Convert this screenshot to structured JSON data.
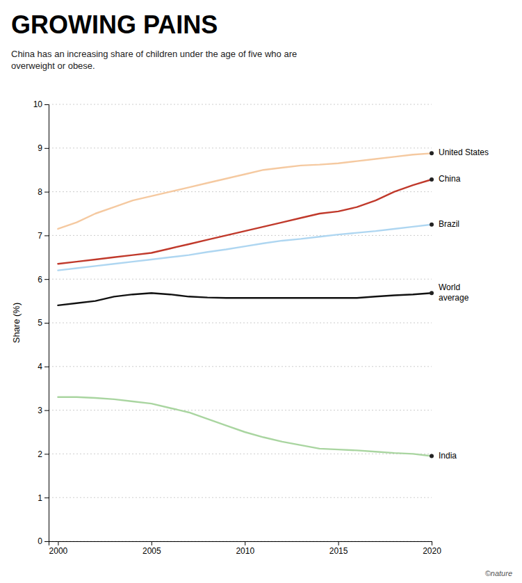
{
  "chart_data": {
    "type": "line",
    "title": "GROWING PAINS",
    "subtitle": "China has an increasing share of children under the age of five who are\noverweight or obese.",
    "ylabel": "Share (%)",
    "x": [
      2000,
      2001,
      2002,
      2003,
      2004,
      2005,
      2006,
      2007,
      2008,
      2009,
      2010,
      2011,
      2012,
      2013,
      2014,
      2015,
      2016,
      2017,
      2018,
      2019,
      2020
    ],
    "series": [
      {
        "name": "United States",
        "color": "#F5C9A0",
        "values": [
          7.15,
          7.3,
          7.5,
          7.65,
          7.8,
          7.9,
          8.0,
          8.1,
          8.2,
          8.3,
          8.4,
          8.5,
          8.55,
          8.6,
          8.62,
          8.65,
          8.7,
          8.75,
          8.8,
          8.85,
          8.88
        ]
      },
      {
        "name": "China",
        "color": "#C0392B",
        "values": [
          6.35,
          6.4,
          6.45,
          6.5,
          6.55,
          6.6,
          6.7,
          6.8,
          6.9,
          7.0,
          7.1,
          7.2,
          7.3,
          7.4,
          7.5,
          7.55,
          7.65,
          7.8,
          8.0,
          8.15,
          8.28
        ]
      },
      {
        "name": "Brazil",
        "color": "#AED6F1",
        "values": [
          6.2,
          6.25,
          6.3,
          6.35,
          6.4,
          6.45,
          6.5,
          6.55,
          6.62,
          6.68,
          6.75,
          6.82,
          6.88,
          6.92,
          6.97,
          7.02,
          7.06,
          7.1,
          7.15,
          7.2,
          7.25
        ]
      },
      {
        "name": "World\naverage",
        "color": "#111111",
        "values": [
          5.4,
          5.45,
          5.5,
          5.6,
          5.65,
          5.68,
          5.65,
          5.6,
          5.58,
          5.57,
          5.57,
          5.57,
          5.57,
          5.57,
          5.57,
          5.57,
          5.57,
          5.6,
          5.63,
          5.65,
          5.68
        ]
      },
      {
        "name": "India",
        "color": "#A9D5A0",
        "values": [
          3.3,
          3.3,
          3.28,
          3.25,
          3.2,
          3.15,
          3.05,
          2.95,
          2.8,
          2.65,
          2.5,
          2.38,
          2.28,
          2.2,
          2.12,
          2.1,
          2.08,
          2.05,
          2.02,
          2.0,
          1.95
        ]
      }
    ],
    "xlim": [
      1999.5,
      2020
    ],
    "ylim": [
      0,
      10
    ],
    "xticks": [
      2000,
      2005,
      2010,
      2015,
      2020
    ],
    "yticks": [
      0,
      1,
      2,
      3,
      4,
      5,
      6,
      7,
      8,
      9,
      10
    ],
    "grid": true,
    "annotations": [
      {
        "text": "©nature"
      }
    ]
  }
}
